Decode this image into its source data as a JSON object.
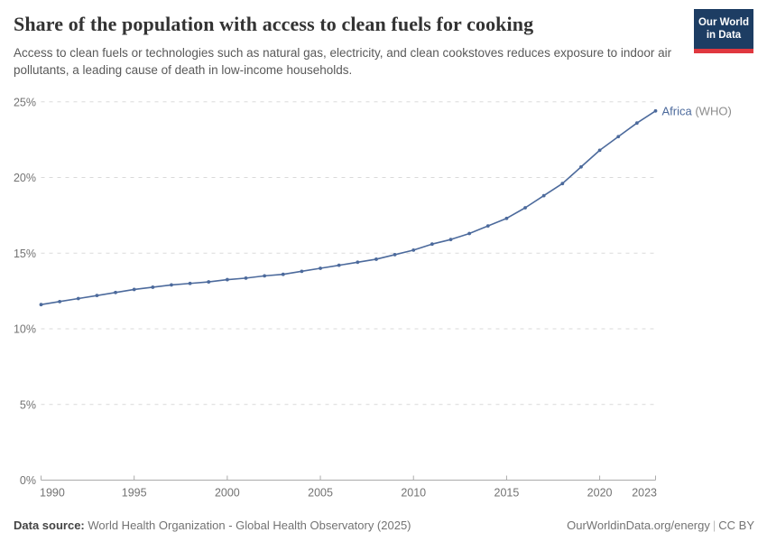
{
  "chart_data": {
    "type": "line",
    "title": "Share of the population with access to clean fuels for cooking",
    "subtitle": "Access to clean fuels or technologies such as natural gas, electricity, and clean cookstoves reduces exposure to indoor air pollutants, a leading cause of death in low-income households.",
    "xlabel": "",
    "ylabel": "",
    "xlim": [
      1990,
      2023
    ],
    "ylim": [
      0,
      25
    ],
    "grid": "horizontal-dashed",
    "legend_position": "end-of-line-label",
    "x_ticks": [
      {
        "value": 1990,
        "label": "1990",
        "align": "start"
      },
      {
        "value": 1995,
        "label": "1995",
        "align": "middle"
      },
      {
        "value": 2000,
        "label": "2000",
        "align": "middle"
      },
      {
        "value": 2005,
        "label": "2005",
        "align": "middle"
      },
      {
        "value": 2010,
        "label": "2010",
        "align": "middle"
      },
      {
        "value": 2015,
        "label": "2015",
        "align": "middle"
      },
      {
        "value": 2020,
        "label": "2020",
        "align": "middle"
      },
      {
        "value": 2023,
        "label": "2023",
        "align": "end"
      }
    ],
    "y_ticks": [
      {
        "value": 0,
        "label": "0%"
      },
      {
        "value": 5,
        "label": "5%"
      },
      {
        "value": 10,
        "label": "10%"
      },
      {
        "value": 15,
        "label": "15%"
      },
      {
        "value": 20,
        "label": "20%"
      },
      {
        "value": 25,
        "label": "25%"
      }
    ],
    "series": [
      {
        "name": "Africa (WHO)",
        "color": "#4c6a9c",
        "x": [
          1990,
          1991,
          1992,
          1993,
          1994,
          1995,
          1996,
          1997,
          1998,
          1999,
          2000,
          2001,
          2002,
          2003,
          2004,
          2005,
          2006,
          2007,
          2008,
          2009,
          2010,
          2011,
          2012,
          2013,
          2014,
          2015,
          2016,
          2017,
          2018,
          2019,
          2020,
          2021,
          2022,
          2023
        ],
        "values": [
          11.6,
          11.8,
          12.0,
          12.2,
          12.4,
          12.6,
          12.75,
          12.9,
          13.0,
          13.1,
          13.25,
          13.35,
          13.5,
          13.6,
          13.8,
          14.0,
          14.2,
          14.4,
          14.6,
          14.9,
          15.2,
          15.6,
          15.9,
          16.3,
          16.8,
          17.3,
          18.0,
          18.8,
          19.6,
          20.7,
          21.8,
          22.7,
          23.6,
          24.4
        ],
        "end_label": {
          "entity": "Africa",
          "suffix": " (WHO)",
          "suffix_color": "#8c8c8c"
        }
      }
    ],
    "colors": {
      "gridline": "#dadada",
      "axis_line": "#ababab",
      "tick_text": "#737373"
    }
  },
  "logo": {
    "line1": "Our World",
    "line2": "in Data",
    "bg_color": "#1d3d63",
    "stripe_color": "#e0383f"
  },
  "footer": {
    "datasource_label": "Data source:",
    "datasource_text": " World Health Organization - Global Health Observatory (2025)",
    "link_text": "OurWorldinData.org/energy",
    "separator": "|",
    "license_text": "CC BY"
  }
}
